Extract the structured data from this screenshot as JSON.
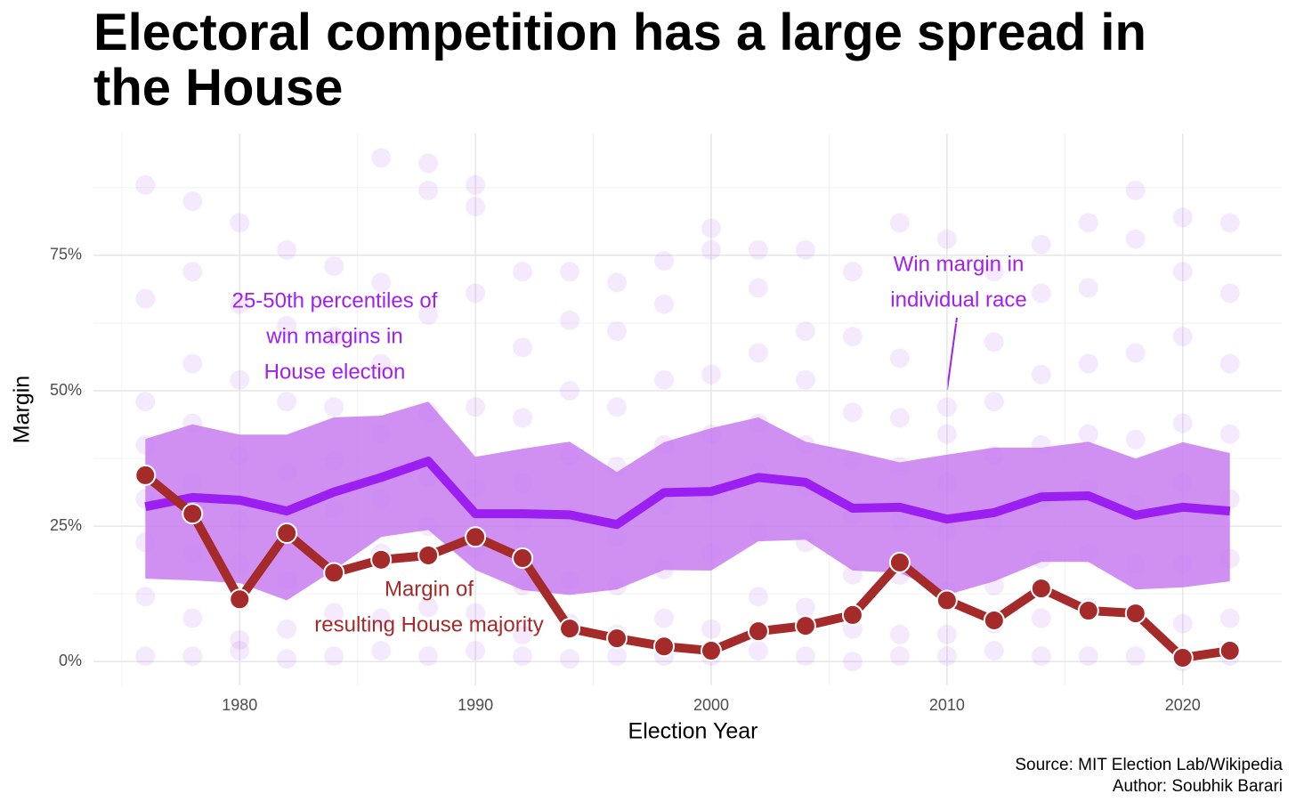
{
  "chart_data": {
    "type": "line",
    "title": "Electoral competition has a large spread in the House",
    "x_label": "Election Year",
    "y_label": "Margin",
    "x": [
      1976,
      1978,
      1980,
      1982,
      1984,
      1986,
      1988,
      1990,
      1992,
      1994,
      1996,
      1998,
      2000,
      2002,
      2004,
      2006,
      2008,
      2010,
      2012,
      2014,
      2016,
      2018,
      2020,
      2022
    ],
    "xlim": [
      1973.8,
      2024.2
    ],
    "xticks": [
      1980,
      1990,
      2000,
      2010,
      2020
    ],
    "ylim": [
      -4.4,
      97.5
    ],
    "yticks": [
      {
        "value": 0,
        "label": "0%"
      },
      {
        "value": 25,
        "label": "25%"
      },
      {
        "value": 50,
        "label": "50%"
      },
      {
        "value": 75,
        "label": "75%"
      }
    ],
    "grid": true,
    "races": {
      "color": "#b060f0",
      "values": [
        [
          88,
          67,
          48,
          40,
          30,
          22,
          12,
          1
        ],
        [
          85,
          72,
          55,
          44,
          33,
          20,
          8,
          1
        ],
        [
          81,
          66,
          52,
          38,
          26,
          18,
          4,
          2
        ],
        [
          76,
          62,
          48,
          35,
          24,
          15,
          6,
          0.5
        ],
        [
          73,
          60,
          47,
          37,
          28,
          17,
          9,
          1
        ],
        [
          93,
          70,
          55,
          42,
          30,
          20,
          8,
          2
        ],
        [
          92,
          87,
          64,
          46,
          34,
          25,
          10,
          1
        ],
        [
          88,
          84,
          68,
          47,
          32,
          21,
          9,
          2
        ],
        [
          72,
          58,
          45,
          33,
          26,
          14,
          5,
          1
        ],
        [
          72,
          63,
          50,
          38,
          27,
          15,
          7,
          0.5
        ],
        [
          70,
          61,
          47,
          36,
          23,
          14,
          5,
          1
        ],
        [
          74,
          66,
          52,
          40,
          29,
          17,
          8,
          1
        ],
        [
          80,
          76,
          53,
          42,
          31,
          20,
          6,
          1
        ],
        [
          76,
          69,
          57,
          44,
          35,
          24,
          12,
          2
        ],
        [
          76,
          61,
          52,
          40,
          32,
          22,
          10,
          1
        ],
        [
          72,
          60,
          46,
          37,
          27,
          16,
          6,
          0
        ],
        [
          81,
          56,
          45,
          36,
          26,
          16,
          5,
          1
        ],
        [
          78,
          47,
          42,
          33,
          24,
          13,
          5,
          1
        ],
        [
          72,
          59,
          48,
          38,
          26,
          14,
          7,
          2
        ],
        [
          77,
          68,
          53,
          40,
          30,
          19,
          8,
          1
        ],
        [
          81,
          69,
          55,
          42,
          32,
          20,
          10,
          1
        ],
        [
          87,
          78,
          57,
          41,
          29,
          18,
          9,
          1
        ],
        [
          82,
          72,
          60,
          44,
          33,
          18,
          7,
          0
        ],
        [
          81,
          68,
          55,
          42,
          30,
          19,
          8,
          1
        ]
      ]
    },
    "band": {
      "color": "#c77cf0",
      "upper": [
        41.1,
        43.8,
        41.9,
        41.9,
        45.1,
        45.4,
        48.0,
        37.8,
        39.3,
        40.6,
        35.0,
        40.5,
        43.1,
        45.1,
        40.6,
        38.8,
        36.8,
        38.2,
        39.5,
        39.5,
        40.6,
        37.5,
        40.5,
        38.5
      ],
      "lower": [
        15.3,
        15.0,
        14.5,
        11.3,
        16.9,
        23.0,
        24.3,
        16.9,
        13.2,
        12.3,
        13.3,
        16.9,
        16.8,
        22.2,
        22.5,
        16.8,
        16.4,
        12.3,
        14.8,
        18.4,
        18.4,
        13.3,
        13.7,
        14.8
      ]
    },
    "series": [
      {
        "color": "#9b1ff0",
        "values": [
          28.6,
          30.3,
          29.8,
          27.8,
          31.3,
          34.0,
          37.0,
          27.3,
          27.3,
          27.1,
          25.3,
          31.2,
          31.4,
          34.0,
          33.1,
          28.3,
          28.5,
          26.3,
          27.5,
          30.4,
          30.6,
          27.0,
          28.5,
          27.8
        ]
      },
      {
        "color": "#a52a2a",
        "markers": true,
        "values": [
          34.4,
          27.3,
          11.5,
          23.7,
          16.4,
          18.8,
          19.6,
          23.0,
          19.1,
          6.1,
          4.3,
          2.8,
          2.0,
          5.6,
          6.6,
          8.6,
          18.3,
          11.3,
          7.6,
          13.5,
          9.4,
          8.9,
          0.7,
          2.0
        ]
      }
    ],
    "annotations": [
      {
        "lines": [
          "25-50th percentiles of",
          "win margins in",
          "House election"
        ],
        "color": "#a020f0"
      },
      {
        "lines": [
          "Win margin in",
          "individual race"
        ],
        "color": "#a020f0"
      },
      {
        "lines": [
          "Margin of",
          "resulting House majority"
        ],
        "color": "#a52a2a"
      }
    ],
    "caption": [
      "Source: MIT Election Lab/Wikipedia",
      "Author: Soubhik Barari"
    ]
  }
}
